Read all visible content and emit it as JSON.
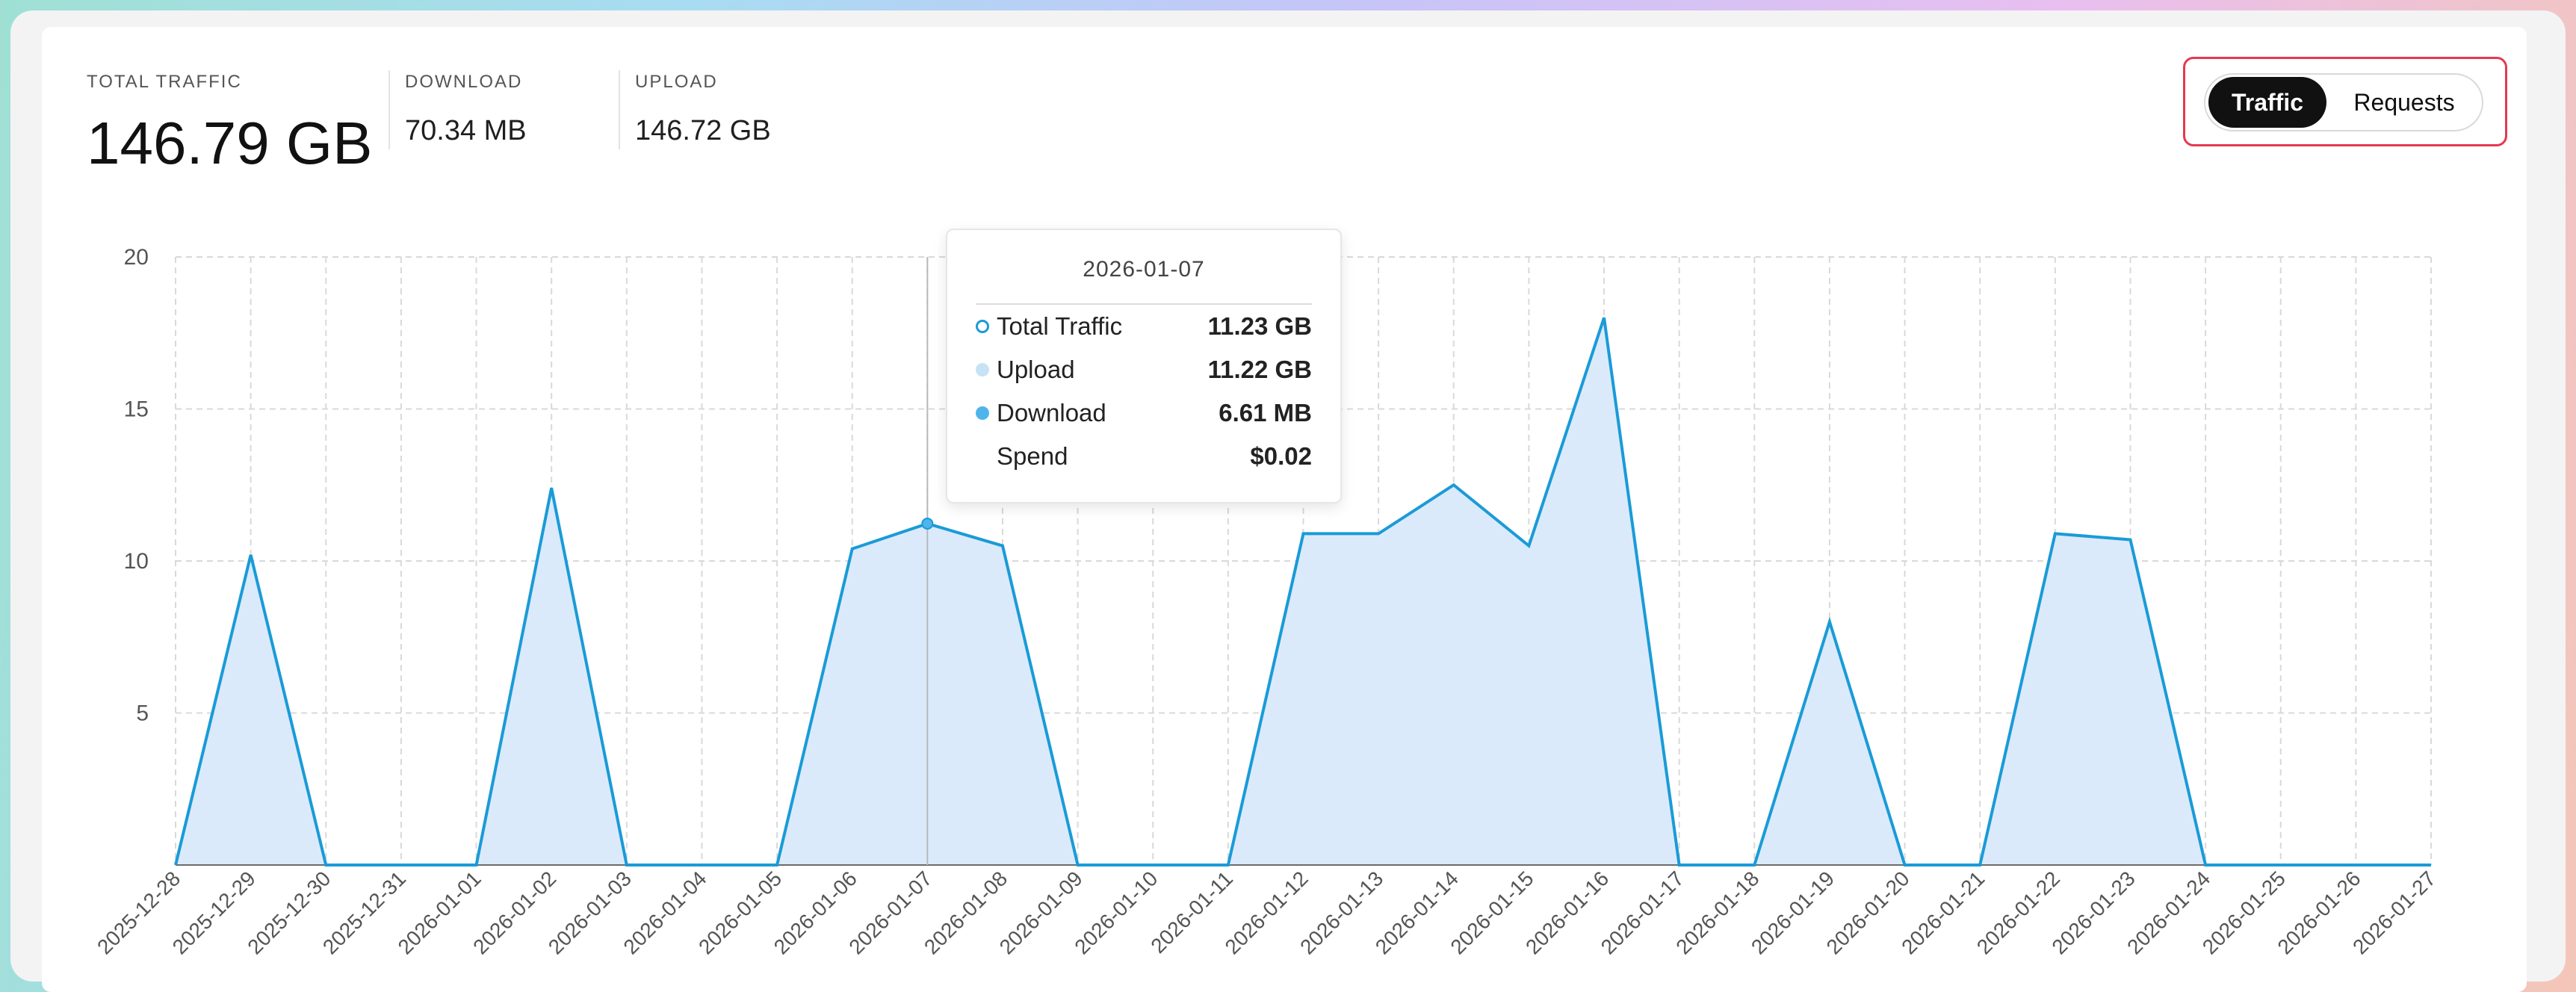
{
  "stats": {
    "total": {
      "label": "TOTAL TRAFFIC",
      "value": "146.79 GB"
    },
    "download": {
      "label": "DOWNLOAD",
      "value": "70.34 MB"
    },
    "upload": {
      "label": "UPLOAD",
      "value": "146.72 GB"
    }
  },
  "toggle": {
    "active": "Traffic",
    "inactive": "Requests"
  },
  "tooltip": {
    "date": "2026-01-07",
    "rows": [
      {
        "name": "Total Traffic",
        "value": "11.23 GB",
        "marker": "hollow",
        "color": "#1a9bd7"
      },
      {
        "name": "Upload",
        "value": "11.22 GB",
        "marker": "filled",
        "color": "#c6e3f5"
      },
      {
        "name": "Download",
        "value": "6.61 MB",
        "marker": "filled",
        "color": "#4fb4ec"
      },
      {
        "name": "Spend",
        "value": "$0.02",
        "marker": "none",
        "color": ""
      }
    ]
  },
  "chart_data": {
    "type": "area",
    "ylim": [
      0,
      20
    ],
    "yticks": [
      5,
      10,
      15,
      20
    ],
    "grid": true,
    "highlight_index": 10,
    "colors": {
      "line": "#1a9bd7",
      "fill": "#dbeafb",
      "grid": "#d9d9d9",
      "axis": "#555555"
    },
    "categories": [
      "2025-12-28",
      "2025-12-29",
      "2025-12-30",
      "2025-12-31",
      "2026-01-01",
      "2026-01-02",
      "2026-01-03",
      "2026-01-04",
      "2026-01-05",
      "2026-01-06",
      "2026-01-07",
      "2026-01-08",
      "2026-01-09",
      "2026-01-10",
      "2026-01-11",
      "2026-01-12",
      "2026-01-13",
      "2026-01-14",
      "2026-01-15",
      "2026-01-16",
      "2026-01-17",
      "2026-01-18",
      "2026-01-19",
      "2026-01-20",
      "2026-01-21",
      "2026-01-22",
      "2026-01-23",
      "2026-01-24",
      "2026-01-25",
      "2026-01-26",
      "2026-01-27"
    ],
    "series": [
      {
        "name": "Total Traffic",
        "values": [
          0,
          10.2,
          0,
          0,
          0,
          12.4,
          0,
          0,
          0,
          10.4,
          11.23,
          10.5,
          0,
          0,
          0,
          10.9,
          10.9,
          12.5,
          10.5,
          18.0,
          0,
          0,
          8.0,
          0,
          0,
          10.9,
          10.7,
          0,
          0,
          0,
          0
        ]
      }
    ]
  }
}
